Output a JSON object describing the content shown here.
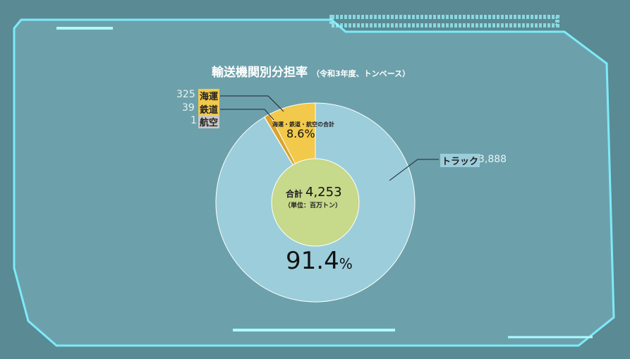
{
  "chart_data": {
    "type": "pie",
    "title": "輸送機関別分担率",
    "subtitle": "（令和3年度、トンベース）",
    "slices": [
      {
        "label": "トラック",
        "value": 3888,
        "color": "#9ccddb"
      },
      {
        "label": "海運",
        "value": 325,
        "color": "#f2c94a"
      },
      {
        "label": "鉄道",
        "value": 39,
        "color": "#dba32a"
      },
      {
        "label": "航空",
        "value": 1,
        "color": "#c8c8c8"
      }
    ],
    "value_labels": {
      "truck": "3,888",
      "sea": "325",
      "rail": "39",
      "air": "1"
    },
    "center_label": "合計",
    "center_value": "4,253",
    "center_unit": "（単位：百万トン）",
    "annotation_small": "海運・鉄道・航空の合計",
    "annotation_small_pct": "8.6%",
    "annotation_large_pct": "91.4",
    "annotation_large_unit": "%",
    "center_color": "#c7d98a"
  }
}
